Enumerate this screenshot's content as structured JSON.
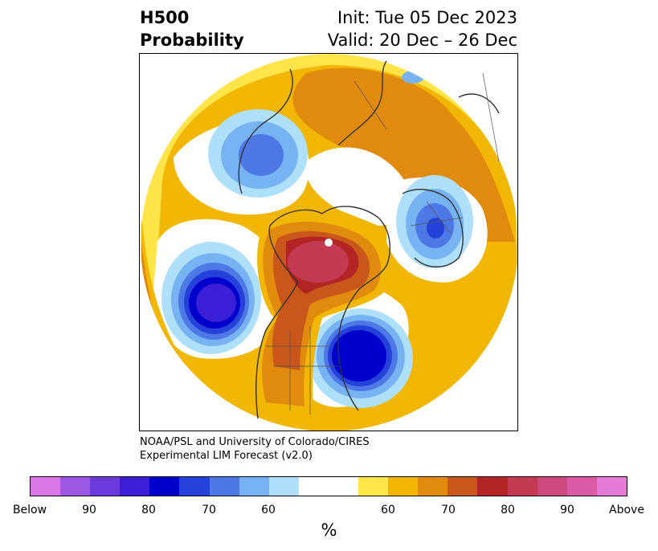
{
  "header": {
    "variable": "H500",
    "product": "Probability",
    "init": "Init: Tue 05 Dec 2023",
    "valid": "Valid: 20 Dec – 26 Dec"
  },
  "credit": {
    "line1": "NOAA/PSL and University of Colorado/CIRES",
    "line2": "Experimental LIM Forecast (v2.0)"
  },
  "colorbar": {
    "segments": [
      "#d978e6",
      "#9d58e3",
      "#6a3adc",
      "#3b1fd6",
      "#0000cc",
      "#2441d9",
      "#4d78e6",
      "#77b3f2",
      "#aee0fb",
      "#ffffff",
      "#ffffff",
      "#ffe44a",
      "#f2b705",
      "#e08a0e",
      "#c9561a",
      "#b32424",
      "#c43a52",
      "#cc4a7d",
      "#da5aa8",
      "#e67ad9"
    ],
    "tick_labels": [
      "Below",
      "90",
      "80",
      "70",
      "60",
      "60",
      "70",
      "80",
      "90",
      "Above"
    ],
    "unit": "%"
  },
  "colors": {
    "below_strong": "#2a1fd0",
    "below_weak": "#aee0fb",
    "above_weak": "#ffe44a",
    "above_strong": "#c43a52"
  }
}
